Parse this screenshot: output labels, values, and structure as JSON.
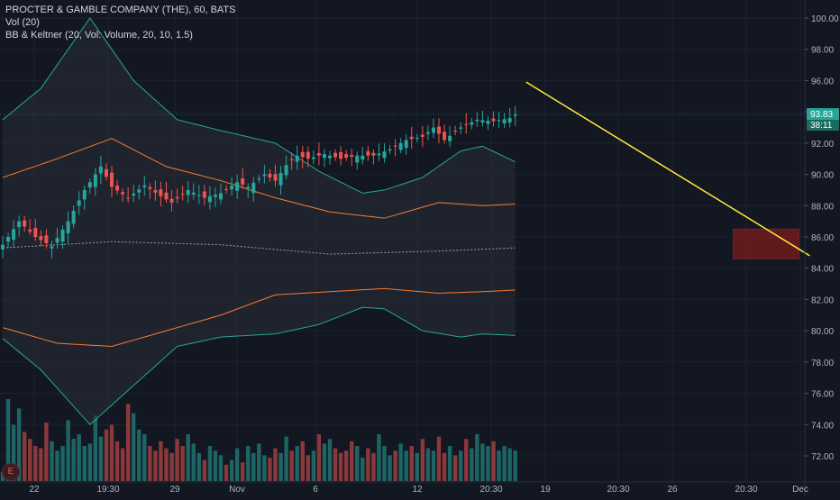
{
  "legend": {
    "symbol_line": "PROCTER & GAMBLE COMPANY (THE), 60, BATS",
    "vol_line": "Vol (20)",
    "indicator_line": "BB & Keltner (20, Vol: Volume, 20, 10, 1.5)"
  },
  "price_axis": {
    "ticks": [
      "100.00",
      "98.00",
      "96.00",
      "94.00",
      "92.00",
      "90.00",
      "88.00",
      "86.00",
      "84.00",
      "82.00",
      "80.00",
      "78.00",
      "76.00",
      "74.00",
      "72.00"
    ],
    "current_price": "93.83",
    "countdown": "38:11"
  },
  "time_axis": {
    "ticks": [
      "22",
      "19:30",
      "29",
      "Nov",
      "6",
      "12",
      "20:30",
      "19",
      "20:30",
      "26",
      "20:30",
      "Dec"
    ]
  },
  "events": {
    "badge": "E"
  },
  "colors": {
    "background": "#131722",
    "up": "#26a69a",
    "down": "#ef5350",
    "bb_band": "#26a69a",
    "keltner": "#f57c34",
    "trendline": "#ffeb3b",
    "box": "#7a1b1b"
  },
  "chart_data": {
    "type": "candlestick",
    "title": "PROCTER & GAMBLE COMPANY (THE), 60, BATS",
    "ylim": [
      70.8,
      100.8
    ],
    "price_start": 85.4,
    "price_end": 93.83,
    "bar_count": 95,
    "price_path": [
      [
        0,
        85.5
      ],
      [
        3,
        87.0
      ],
      [
        6,
        86.0
      ],
      [
        9,
        85.4
      ],
      [
        12,
        87.0
      ],
      [
        15,
        89.0
      ],
      [
        18,
        90.5
      ],
      [
        20,
        89.2
      ],
      [
        23,
        88.5
      ],
      [
        26,
        89.3
      ],
      [
        29,
        88.6
      ],
      [
        31,
        88.2
      ],
      [
        34,
        89.0
      ],
      [
        37,
        88.5
      ],
      [
        40,
        88.8
      ],
      [
        43,
        89.5
      ],
      [
        45,
        89.2
      ],
      [
        48,
        90.0
      ],
      [
        50,
        89.6
      ],
      [
        52,
        90.6
      ],
      [
        54,
        91.2
      ],
      [
        56,
        91.0
      ],
      [
        59,
        91.3
      ],
      [
        62,
        91.0
      ],
      [
        65,
        91.2
      ],
      [
        68,
        91.2
      ],
      [
        71,
        91.6
      ],
      [
        74,
        92.2
      ],
      [
        77,
        92.4
      ],
      [
        79,
        93.0
      ],
      [
        81,
        92.2
      ],
      [
        84,
        93.0
      ],
      [
        87,
        93.5
      ],
      [
        90,
        93.4
      ],
      [
        93,
        93.6
      ],
      [
        94,
        93.83
      ]
    ],
    "bollinger": {
      "upper": [
        [
          0,
          93.5
        ],
        [
          7,
          95.5
        ],
        [
          16,
          100.0
        ],
        [
          24,
          96.0
        ],
        [
          32,
          93.5
        ],
        [
          40,
          92.8
        ],
        [
          50,
          92.0
        ],
        [
          58,
          90.2
        ],
        [
          66,
          88.8
        ],
        [
          70,
          89.0
        ],
        [
          77,
          89.8
        ],
        [
          84,
          91.5
        ],
        [
          88,
          91.8
        ],
        [
          94,
          90.8
        ]
      ],
      "middle": [
        [
          0,
          85.3
        ],
        [
          20,
          85.7
        ],
        [
          40,
          85.5
        ],
        [
          60,
          84.9
        ],
        [
          80,
          85.1
        ],
        [
          94,
          85.3
        ]
      ],
      "lower": [
        [
          0,
          79.5
        ],
        [
          7,
          77.5
        ],
        [
          16,
          74.0
        ],
        [
          24,
          76.5
        ],
        [
          32,
          79.0
        ],
        [
          40,
          79.6
        ],
        [
          50,
          79.8
        ],
        [
          58,
          80.4
        ],
        [
          66,
          81.5
        ],
        [
          70,
          81.4
        ],
        [
          77,
          80.0
        ],
        [
          84,
          79.6
        ],
        [
          88,
          79.8
        ],
        [
          94,
          79.7
        ]
      ]
    },
    "keltner": {
      "upper": [
        [
          0,
          89.8
        ],
        [
          10,
          91.0
        ],
        [
          20,
          92.3
        ],
        [
          30,
          90.5
        ],
        [
          40,
          89.6
        ],
        [
          50,
          88.5
        ],
        [
          60,
          87.6
        ],
        [
          70,
          87.2
        ],
        [
          80,
          88.2
        ],
        [
          88,
          88.0
        ],
        [
          94,
          88.1
        ]
      ],
      "lower": [
        [
          0,
          80.2
        ],
        [
          10,
          79.2
        ],
        [
          20,
          79.0
        ],
        [
          30,
          80.0
        ],
        [
          40,
          81.0
        ],
        [
          50,
          82.3
        ],
        [
          60,
          82.5
        ],
        [
          70,
          82.7
        ],
        [
          80,
          82.4
        ],
        [
          88,
          82.5
        ],
        [
          94,
          82.6
        ]
      ]
    },
    "volume": {
      "ylim": [
        0,
        100
      ],
      "values": [
        8,
        70,
        48,
        62,
        42,
        36,
        30,
        28,
        50,
        34,
        26,
        30,
        52,
        36,
        40,
        30,
        32,
        56,
        38,
        44,
        48,
        34,
        28,
        66,
        58,
        44,
        40,
        30,
        26,
        34,
        28,
        24,
        36,
        30,
        40,
        32,
        24,
        18,
        30,
        26,
        22,
        14,
        18,
        28,
        16,
        30,
        24,
        32,
        22,
        20,
        28,
        24,
        38,
        26,
        30,
        34,
        22,
        26,
        40,
        32,
        36,
        28,
        24,
        26,
        34,
        30,
        20,
        28,
        24,
        40,
        30,
        22,
        26,
        32,
        26,
        30,
        24,
        36,
        28,
        26,
        38,
        24,
        30,
        22,
        26,
        36,
        28,
        40,
        32,
        30,
        34,
        26,
        30,
        28,
        26
      ]
    },
    "trendline": {
      "from": [
        96,
        95.9
      ],
      "to": [
        148,
        84.8
      ]
    },
    "rectangle": {
      "x0": 134,
      "x1": 146,
      "y0": 84.6,
      "y1": 86.5
    }
  }
}
